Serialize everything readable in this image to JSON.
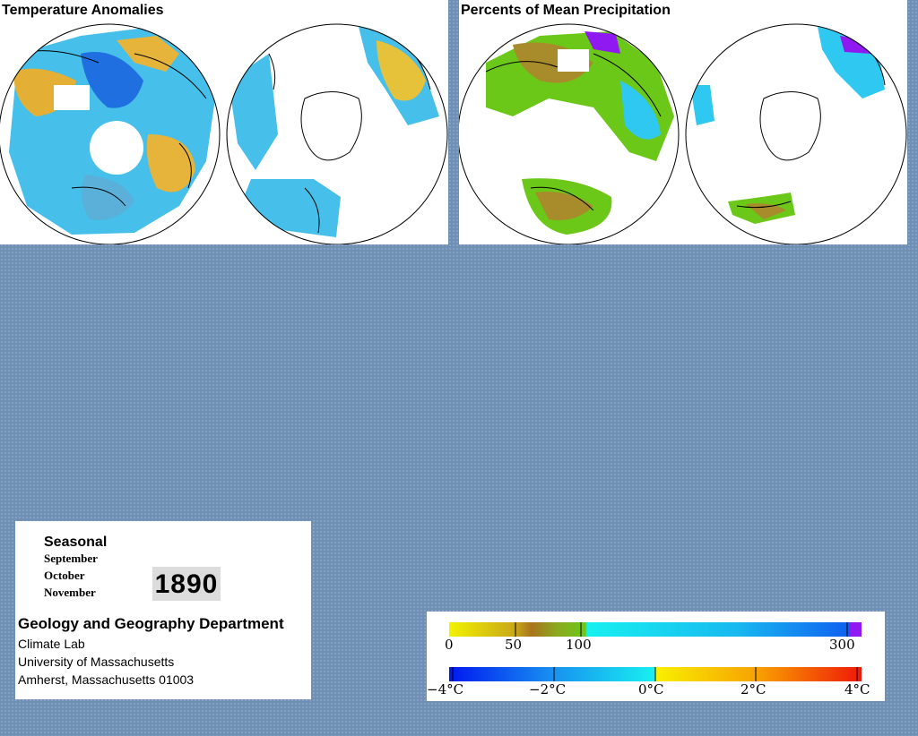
{
  "panels": {
    "temperature": {
      "title": "Temperature Anomalies"
    },
    "precipitation": {
      "title": "Percents of Mean Precipitation"
    }
  },
  "info": {
    "season": "Seasonal",
    "months": [
      "September",
      "October",
      "November"
    ],
    "year": "1890",
    "department": "Geology and Geography Department",
    "address": [
      "Climate Lab",
      "University of Massachusetts",
      "Amherst, Massachusetts 01003"
    ]
  },
  "legends": {
    "precipitation": {
      "ticks": [
        "0",
        "50",
        "100",
        "300"
      ],
      "colors": {
        "dry": "#f2f200",
        "brown": "#a8741c",
        "green": "#6cc818",
        "cyan": "#18f0f0",
        "blue": "#1060f0",
        "purple": "#9018f0"
      }
    },
    "temperature": {
      "ticks": [
        "−4°C",
        "−2°C",
        "0°C",
        "2°C",
        "4°C"
      ],
      "colors": {
        "cold": "#0018f0",
        "cool": "#18a0f0",
        "neutral": "#18f0f0",
        "warm": "#f8f000",
        "hot": "#f01808"
      }
    }
  },
  "map_colors": {
    "warm_anomaly": "#e0b838",
    "cool_anomaly": "#3ab8ea",
    "strong_cool": "#1f6fe0",
    "wet": "#2ec8f0",
    "dry": "#a88c2c",
    "normal": "#6cc818"
  }
}
